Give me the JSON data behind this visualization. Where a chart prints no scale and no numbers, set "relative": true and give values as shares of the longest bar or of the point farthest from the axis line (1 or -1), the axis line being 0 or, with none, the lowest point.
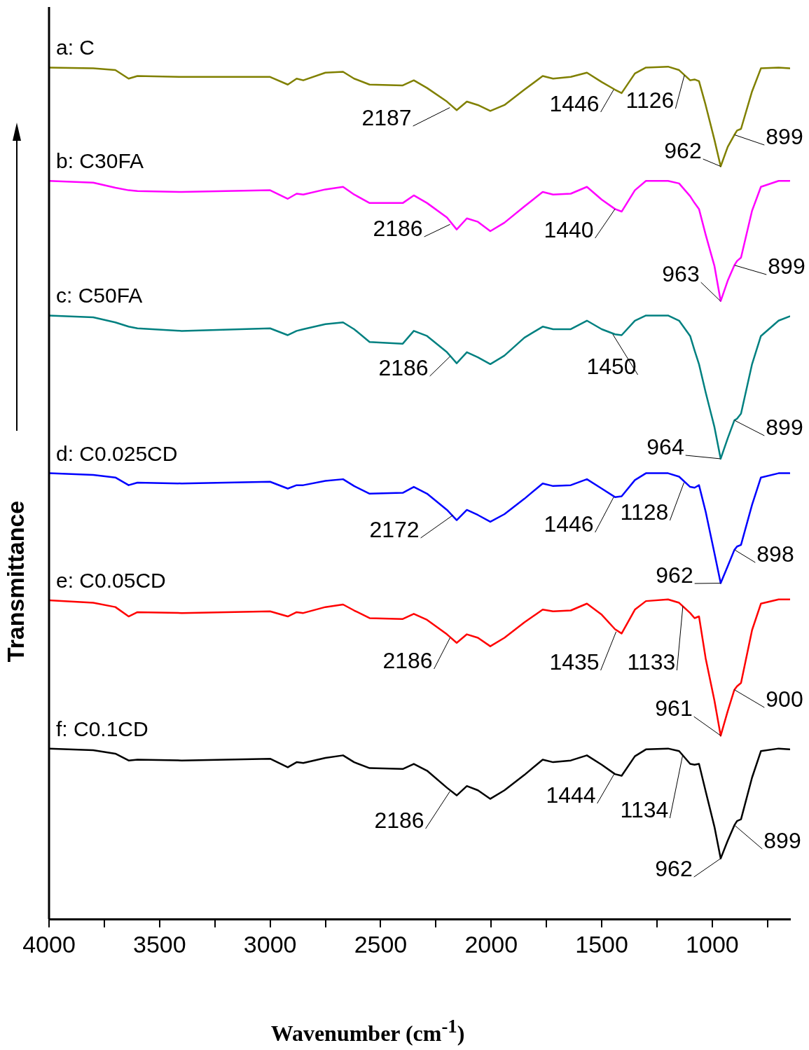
{
  "chart_data": {
    "type": "line",
    "relative": true,
    "xlabel": "Wavenumber (cm$^{-1}$)",
    "ylabel": "Transmittance",
    "xlim": [
      4000,
      648
    ],
    "xticks": [
      4000,
      {
        "value": 3750,
        "label": null
      },
      3500,
      {
        "value": 3250,
        "label": null
      },
      3000,
      {
        "value": 2750,
        "label": null
      },
      2500,
      {
        "value": 2250,
        "label": null
      },
      2000,
      {
        "value": 1750,
        "label": null
      },
      1500,
      {
        "value": 1250,
        "label": null
      },
      1000,
      {
        "value": 750,
        "label": null
      }
    ],
    "grid": false,
    "legend": false,
    "marker": "none",
    "line_style": "solid",
    "x": [
      4000,
      3800,
      3700,
      3640,
      3600,
      3400,
      3000,
      2920,
      2880,
      2850,
      2750,
      2670,
      2620,
      2550,
      2400,
      2350,
      2290,
      2200,
      2156,
      2110,
      2060,
      2004,
      1940,
      1850,
      1767,
      1720,
      1640,
      1567,
      1500,
      1440,
      1410,
      1350,
      1300,
      1200,
      1150,
      1100,
      1080,
      1060,
      1030,
      990,
      962,
      930,
      900,
      888,
      870,
      820,
      780,
      700,
      650
    ],
    "series": [
      {
        "name": "a: C",
        "color": "#808000",
        "values": [
          0.999,
          0.998,
          0.996,
          0.986,
          0.989,
          0.988,
          0.988,
          0.979,
          0.986,
          0.984,
          0.993,
          0.994,
          0.986,
          0.979,
          0.978,
          0.984,
          0.975,
          0.959,
          0.949,
          0.959,
          0.955,
          0.948,
          0.955,
          0.973,
          0.989,
          0.986,
          0.988,
          0.993,
          0.982,
          0.973,
          0.969,
          0.992,
          0.999,
          1,
          0.996,
          0.984,
          0.985,
          0.983,
          0.955,
          0.914,
          0.883,
          0.906,
          0.92,
          0.925,
          0.927,
          0.971,
          0.998,
          0.999,
          0.998
        ]
      },
      {
        "name": "b: C30FA",
        "color": "#ff00ff",
        "values": [
          0.866,
          0.864,
          0.858,
          0.855,
          0.854,
          0.853,
          0.855,
          0.845,
          0.851,
          0.85,
          0.856,
          0.859,
          0.85,
          0.84,
          0.84,
          0.849,
          0.84,
          0.823,
          0.809,
          0.822,
          0.818,
          0.807,
          0.817,
          0.836,
          0.853,
          0.85,
          0.851,
          0.859,
          0.844,
          0.833,
          0.83,
          0.855,
          0.866,
          0.866,
          0.863,
          0.848,
          0.84,
          0.833,
          0.803,
          0.766,
          0.725,
          0.749,
          0.767,
          0.772,
          0.776,
          0.831,
          0.859,
          0.866,
          0.866
        ]
      },
      {
        "name": "c: C50FA",
        "color": "#008080",
        "values": [
          0.708,
          0.706,
          0.7,
          0.695,
          0.693,
          0.69,
          0.693,
          0.685,
          0.69,
          0.692,
          0.698,
          0.7,
          0.692,
          0.677,
          0.675,
          0.69,
          0.684,
          0.665,
          0.652,
          0.665,
          0.659,
          0.651,
          0.661,
          0.682,
          0.695,
          0.692,
          0.692,
          0.702,
          0.692,
          0.686,
          0.685,
          0.702,
          0.708,
          0.708,
          0.702,
          0.684,
          0.667,
          0.651,
          0.618,
          0.577,
          0.54,
          0.564,
          0.585,
          0.587,
          0.593,
          0.651,
          0.684,
          0.702,
          0.707
        ]
      },
      {
        "name": "d: C0.025CD",
        "color": "#0000ff",
        "values": [
          0.523,
          0.521,
          0.518,
          0.509,
          0.512,
          0.511,
          0.513,
          0.505,
          0.509,
          0.509,
          0.514,
          0.516,
          0.508,
          0.499,
          0.5,
          0.507,
          0.499,
          0.48,
          0.468,
          0.48,
          0.474,
          0.466,
          0.475,
          0.493,
          0.511,
          0.508,
          0.509,
          0.516,
          0.505,
          0.495,
          0.496,
          0.515,
          0.523,
          0.523,
          0.519,
          0.507,
          0.506,
          0.509,
          0.478,
          0.429,
          0.394,
          0.414,
          0.433,
          0.437,
          0.439,
          0.486,
          0.518,
          0.523,
          0.523
        ]
      },
      {
        "name": "e: C0.05CD",
        "color": "#ff0000",
        "values": [
          0.374,
          0.371,
          0.366,
          0.355,
          0.36,
          0.359,
          0.361,
          0.355,
          0.36,
          0.359,
          0.366,
          0.369,
          0.362,
          0.353,
          0.352,
          0.358,
          0.351,
          0.334,
          0.324,
          0.334,
          0.33,
          0.32,
          0.33,
          0.348,
          0.363,
          0.361,
          0.362,
          0.37,
          0.357,
          0.34,
          0.335,
          0.363,
          0.373,
          0.375,
          0.371,
          0.359,
          0.353,
          0.355,
          0.306,
          0.256,
          0.215,
          0.244,
          0.269,
          0.273,
          0.277,
          0.339,
          0.37,
          0.375,
          0.375
        ]
      },
      {
        "name": "f: C0.1CD",
        "color": "#000000",
        "values": [
          0.2,
          0.198,
          0.194,
          0.186,
          0.187,
          0.186,
          0.188,
          0.178,
          0.184,
          0.183,
          0.189,
          0.192,
          0.184,
          0.177,
          0.176,
          0.182,
          0.174,
          0.154,
          0.145,
          0.156,
          0.151,
          0.141,
          0.151,
          0.169,
          0.187,
          0.184,
          0.186,
          0.192,
          0.181,
          0.17,
          0.168,
          0.191,
          0.199,
          0.2,
          0.197,
          0.182,
          0.181,
          0.182,
          0.15,
          0.108,
          0.071,
          0.092,
          0.11,
          0.115,
          0.117,
          0.166,
          0.197,
          0.2,
          0.199
        ]
      }
    ],
    "annotations": [
      {
        "text": "2187",
        "x": 2187,
        "y": 0.952
      },
      {
        "text": "1446",
        "x": 1446,
        "y": 0.973
      },
      {
        "text": "1126",
        "x": 1126,
        "y": 0.99
      },
      {
        "text": "962",
        "x": 962,
        "y": 0.883
      },
      {
        "text": "899",
        "x": 899,
        "y": 0.92
      },
      {
        "text": "2186",
        "x": 2186,
        "y": 0.815
      },
      {
        "text": "1440",
        "x": 1440,
        "y": 0.833
      },
      {
        "text": "963",
        "x": 963,
        "y": 0.725
      },
      {
        "text": "899",
        "x": 899,
        "y": 0.767
      },
      {
        "text": "2186",
        "x": 2186,
        "y": 0.66
      },
      {
        "text": "1450",
        "x": 1450,
        "y": 0.686
      },
      {
        "text": "964",
        "x": 964,
        "y": 0.54
      },
      {
        "text": "899",
        "x": 899,
        "y": 0.585
      },
      {
        "text": "2172",
        "x": 2172,
        "y": 0.474
      },
      {
        "text": "1446",
        "x": 1446,
        "y": 0.495
      },
      {
        "text": "1128",
        "x": 1128,
        "y": 0.512
      },
      {
        "text": "962",
        "x": 962,
        "y": 0.394
      },
      {
        "text": "898",
        "x": 898,
        "y": 0.433
      },
      {
        "text": "2186",
        "x": 2186,
        "y": 0.33
      },
      {
        "text": "1435",
        "x": 1435,
        "y": 0.337
      },
      {
        "text": "1133",
        "x": 1133,
        "y": 0.367
      },
      {
        "text": "961",
        "x": 961,
        "y": 0.215
      },
      {
        "text": "900",
        "x": 900,
        "y": 0.269
      },
      {
        "text": "2186",
        "x": 2186,
        "y": 0.15
      },
      {
        "text": "1444",
        "x": 1444,
        "y": 0.17
      },
      {
        "text": "1134",
        "x": 1134,
        "y": 0.192
      },
      {
        "text": "962",
        "x": 962,
        "y": 0.071
      },
      {
        "text": "899",
        "x": 899,
        "y": 0.11
      }
    ]
  }
}
